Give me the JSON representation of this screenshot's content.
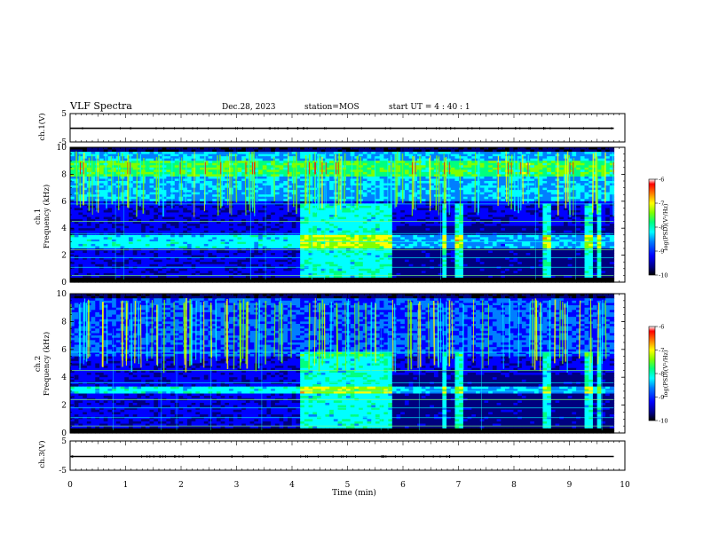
{
  "header": {
    "title": "VLF Spectra",
    "date": "Dec.28, 2023",
    "station": "station=MOS",
    "start": "start UT =  4 : 40 : 1"
  },
  "chart_data": [
    {
      "type": "line",
      "name": "ch1-voltage",
      "ylabel": "ch.1(V)",
      "ylim": [
        -5,
        5
      ],
      "yticks": [
        "5",
        "-5"
      ],
      "series": [
        {
          "x": [
            0,
            9.8
          ],
          "values": [
            -0.2,
            -0.2
          ]
        }
      ]
    },
    {
      "type": "heatmap",
      "name": "ch1-spectrogram",
      "ylabel_top": "ch.1",
      "ylabel": "Frequency (kHz)",
      "ylim": [
        0,
        10
      ],
      "yticks": [
        "0",
        "2",
        "4",
        "6",
        "8",
        "10"
      ],
      "xlim": [
        0,
        10
      ],
      "data_end_min": 9.8,
      "colorbar": {
        "label": "log(PSD)(V²/Hz)",
        "range": [
          -10,
          -6
        ],
        "ticks": [
          "-6",
          "-7",
          "-8",
          "-9",
          "-10"
        ]
      },
      "colorscale": [
        "#000000",
        "#00007f",
        "#0000ff",
        "#007fff",
        "#00ffff",
        "#7fff7f",
        "#ffff00",
        "#ff7f00",
        "#ff0000",
        "#ffffff"
      ],
      "features": {
        "chorus_band_khz": [
          6,
          9.5
        ],
        "chorus_peak_khz": 8.5,
        "hiss_band_khz": [
          2.5,
          3.5
        ],
        "enhanced_intervals_min": [
          [
            4.15,
            5.8
          ],
          [
            6.7,
            6.8
          ],
          [
            6.9,
            7.05
          ],
          [
            8.5,
            8.65
          ],
          [
            9.25,
            9.4
          ],
          [
            9.5,
            9.6
          ]
        ]
      }
    },
    {
      "type": "heatmap",
      "name": "ch2-spectrogram",
      "ylabel_top": "ch.2",
      "ylabel": "Frequency (kHz)",
      "ylim": [
        0,
        10
      ],
      "yticks": [
        "0",
        "2",
        "4",
        "6",
        "8",
        "10"
      ],
      "xlim": [
        0,
        10
      ],
      "data_end_min": 9.8,
      "colorbar": {
        "label": "log(PSD)(V²/Hz)",
        "range": [
          -10,
          -6
        ],
        "ticks": [
          "-6",
          "-7",
          "-8",
          "-9",
          "-10"
        ]
      },
      "features": {
        "chorus_band_khz": [
          5.5,
          9.5
        ],
        "hiss_band_khz": [
          2.8,
          3.4
        ],
        "enhanced_intervals_min": [
          [
            4.15,
            5.8
          ],
          [
            6.7,
            6.8
          ],
          [
            6.9,
            7.05
          ],
          [
            8.5,
            8.65
          ],
          [
            9.25,
            9.4
          ],
          [
            9.5,
            9.6
          ]
        ]
      }
    },
    {
      "type": "line",
      "name": "ch3-voltage",
      "ylabel": "ch.3(V)",
      "ylim": [
        -5,
        5
      ],
      "yticks": [
        "5",
        "-5"
      ],
      "series": [
        {
          "x": [
            0,
            9.8
          ],
          "values": [
            -0.3,
            -0.3
          ]
        }
      ]
    }
  ],
  "xaxis": {
    "label": "Time (min)",
    "ticks": [
      "0",
      "1",
      "2",
      "3",
      "4",
      "5",
      "6",
      "7",
      "8",
      "9",
      "10"
    ],
    "range": [
      0,
      10
    ]
  }
}
